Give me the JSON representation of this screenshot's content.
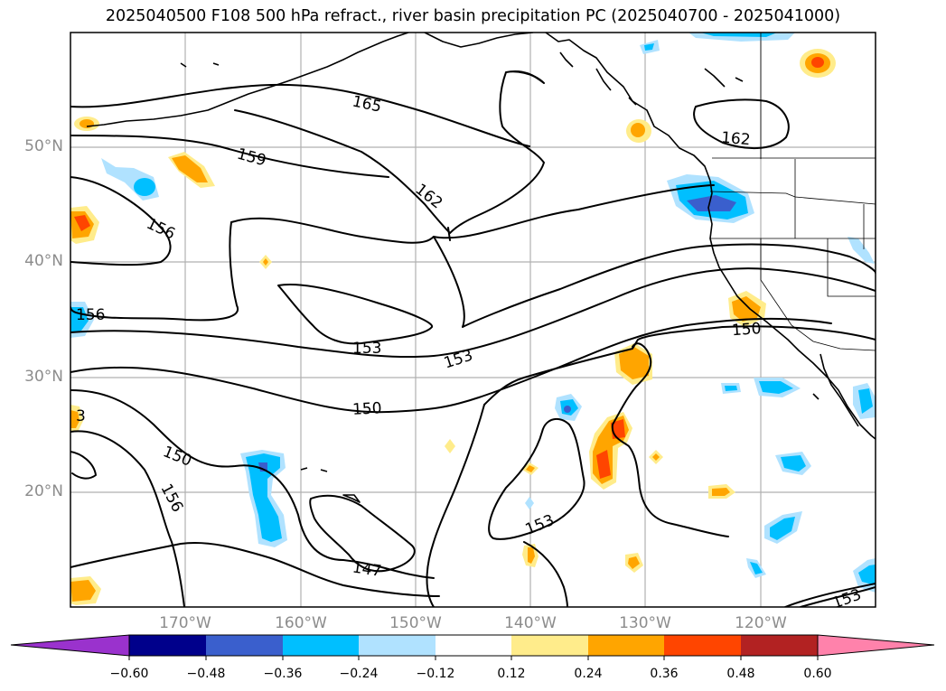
{
  "title": "2025040500 F108 500 hPa refract., river basin precipitation PC (2025040700 - 2025041000)",
  "lat_labels": [
    "50°N",
    "40°N",
    "30°N",
    "20°N"
  ],
  "lon_labels": [
    "170°W",
    "160°W",
    "150°W",
    "140°W",
    "130°W",
    "120°W"
  ],
  "contour_labels": [
    "165",
    "159",
    "162",
    "162",
    "156",
    "156",
    "153",
    "153",
    "150",
    "150",
    "150",
    "156",
    "147",
    "153",
    "153",
    "3"
  ],
  "colorbar": {
    "ticks": [
      "−0.60",
      "−0.48",
      "−0.36",
      "−0.24",
      "−0.12",
      "0.12",
      "0.24",
      "0.36",
      "0.48",
      "0.60"
    ],
    "colors": [
      "#9a32cd",
      "#00008b",
      "#3a5fcd",
      "#00bfff",
      "#b0e2ff",
      "#ffffff",
      "#ffec8b",
      "#ffa500",
      "#ff4500",
      "#b22222",
      "#ff82ab"
    ]
  },
  "map_colors": {
    "neg_light": "#b0e2ff",
    "neg_mid": "#00bfff",
    "neg_dark": "#3a5fcd",
    "neg_darkest": "#00008b",
    "pos_light": "#ffec8b",
    "pos_mid": "#ffa500",
    "pos_dark": "#ff4500",
    "grid": "#b0b0b0",
    "contour": "#000000",
    "axis_label": "#8c8c8c"
  }
}
